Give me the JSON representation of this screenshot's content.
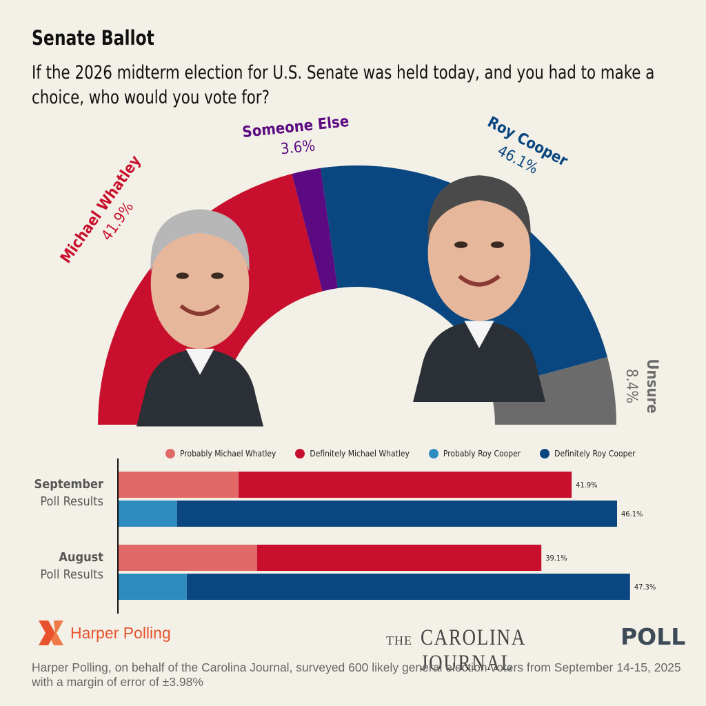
{
  "header": {
    "title": "Senate Ballot",
    "question": "If the 2026 midterm election for U.S. Senate was held today, and you had to make a choice, who would you vote for?"
  },
  "chart_data": [
    {
      "type": "pie",
      "style": "half-donut",
      "slices": [
        {
          "name": "Michael Whatley",
          "label": "41.9%",
          "value": 41.9,
          "color": "#c8102e"
        },
        {
          "name": "Someone Else",
          "label": "3.6%",
          "value": 3.6,
          "color": "#5b0a82"
        },
        {
          "name": "Roy Cooper",
          "label": "46.1%",
          "value": 46.1,
          "color": "#0a4781"
        },
        {
          "name": "Unsure",
          "label": "8.4%",
          "value": 8.4,
          "color": "#6b6b6b"
        }
      ],
      "photos": [
        "Michael Whatley photo",
        "Roy Cooper photo"
      ]
    },
    {
      "type": "bar",
      "orientation": "horizontal",
      "stacked": true,
      "legend": [
        {
          "name": "Probably Michael Whatley",
          "color": "#e16a69"
        },
        {
          "name": "Definitely Michael Whatley",
          "color": "#c8102e"
        },
        {
          "name": "Probably Roy Cooper",
          "color": "#2e8bc0"
        },
        {
          "name": "Definitely Roy Cooper",
          "color": "#0a4781"
        }
      ],
      "groups": [
        {
          "name": "September",
          "sub": "Poll Results",
          "bars": [
            {
              "candidate": "Michael Whatley",
              "probably": 11.1,
              "definitely": 30.8,
              "total": 41.9,
              "label": "41.9%"
            },
            {
              "candidate": "Roy Cooper",
              "probably": 5.4,
              "definitely": 40.7,
              "total": 46.1,
              "label": "46.1%"
            }
          ]
        },
        {
          "name": "August",
          "sub": "Poll Results",
          "bars": [
            {
              "candidate": "Michael Whatley",
              "probably": 12.8,
              "definitely": 26.3,
              "total": 39.1,
              "label": "39.1%"
            },
            {
              "candidate": "Roy Cooper",
              "probably": 6.3,
              "definitely": 41.0,
              "total": 47.3,
              "label": "47.3%"
            }
          ]
        }
      ]
    }
  ],
  "logos": {
    "harper": "Harper Polling",
    "cj_the": "THE",
    "cj_name": "CAROLINA JOURNAL",
    "cj_poll": "POLL"
  },
  "footnote": "Harper Polling, on behalf of the Carolina Journal, surveyed 600 likely general election voters from September 14-15, 2025 with a margin of error of ±3.98%"
}
